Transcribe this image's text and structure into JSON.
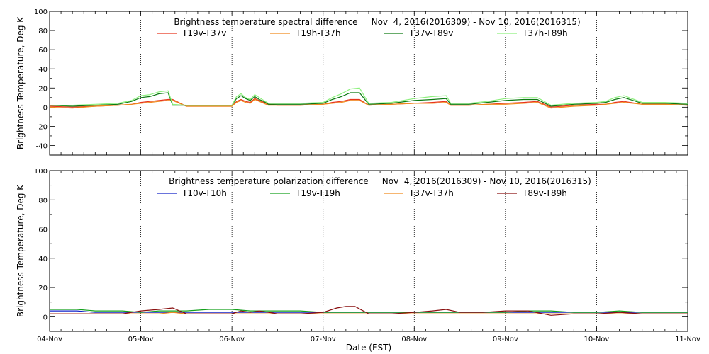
{
  "chart_data": [
    {
      "type": "line",
      "title": "Brightness temperature spectral difference     Nov  4, 2016(2016309) - Nov 10, 2016(2016315)",
      "ylabel": "Brightness Temperature, Deg K",
      "xlabel": "",
      "ylim": [
        -50,
        100
      ],
      "yticks": [
        "-40",
        "-20",
        "0",
        "20",
        "40",
        "60",
        "80",
        "100"
      ],
      "xlim": [
        0,
        7
      ],
      "grid": "vertical dotted lines at day boundaries",
      "legend": "top, single row",
      "series": [
        {
          "name": "T19v-T37v",
          "color": "#e8351c",
          "x": [
            0,
            0.25,
            0.5,
            0.75,
            0.9,
            1.0,
            1.1,
            1.2,
            1.3,
            1.35,
            1.5,
            1.75,
            2.0,
            2.05,
            2.1,
            2.15,
            2.2,
            2.25,
            2.3,
            2.35,
            2.4,
            2.5,
            2.75,
            3.0,
            3.1,
            3.2,
            3.3,
            3.4,
            3.5,
            3.75,
            4.0,
            4.2,
            4.35,
            4.4,
            4.6,
            4.8,
            5.0,
            5.2,
            5.35,
            5.5,
            5.75,
            6.0,
            6.1,
            6.2,
            6.3,
            6.5,
            6.75,
            7.0
          ],
          "y": [
            1,
            0,
            1,
            2,
            3,
            5,
            6,
            7,
            8,
            8,
            1,
            1,
            1,
            6,
            8,
            6,
            5,
            9,
            7,
            5,
            3,
            2,
            2,
            3,
            5,
            6,
            8,
            8,
            2,
            3,
            4,
            5,
            6,
            2,
            2,
            3,
            4,
            5,
            6,
            0,
            2,
            3,
            3,
            5,
            6,
            3,
            3,
            2
          ]
        },
        {
          "name": "T19h-T37h",
          "color": "#f08a1c",
          "x": [
            0,
            0.25,
            0.5,
            0.75,
            0.9,
            1.0,
            1.1,
            1.2,
            1.3,
            1.35,
            1.5,
            1.75,
            2.0,
            2.05,
            2.1,
            2.15,
            2.2,
            2.25,
            2.3,
            2.35,
            2.4,
            2.5,
            2.75,
            3.0,
            3.1,
            3.2,
            3.3,
            3.4,
            3.5,
            3.75,
            4.0,
            4.2,
            4.35,
            4.4,
            4.6,
            4.8,
            5.0,
            5.2,
            5.35,
            5.5,
            5.75,
            6.0,
            6.1,
            6.2,
            6.3,
            6.5,
            6.75,
            7.0
          ],
          "y": [
            0,
            -1,
            1,
            2,
            3,
            4,
            5,
            6,
            7,
            7,
            1,
            1,
            1,
            5,
            7,
            5,
            4,
            8,
            6,
            4,
            2,
            2,
            2,
            3,
            4,
            5,
            7,
            7,
            2,
            3,
            4,
            4,
            5,
            2,
            2,
            3,
            3,
            4,
            5,
            -1,
            1,
            2,
            3,
            4,
            5,
            3,
            3,
            2
          ]
        },
        {
          "name": "T37v-T89v",
          "color": "#0c7a12",
          "x": [
            0,
            0.25,
            0.5,
            0.75,
            0.9,
            1.0,
            1.1,
            1.2,
            1.3,
            1.35,
            1.5,
            1.75,
            2.0,
            2.05,
            2.1,
            2.15,
            2.2,
            2.25,
            2.3,
            2.35,
            2.4,
            2.5,
            2.75,
            3.0,
            3.1,
            3.2,
            3.3,
            3.4,
            3.5,
            3.75,
            4.0,
            4.2,
            4.35,
            4.4,
            4.6,
            4.8,
            5.0,
            5.2,
            5.35,
            5.5,
            5.75,
            6.0,
            6.1,
            6.2,
            6.3,
            6.5,
            6.75,
            7.0
          ],
          "y": [
            2,
            1,
            2,
            3,
            6,
            10,
            11,
            14,
            15,
            2,
            2,
            2,
            2,
            9,
            12,
            9,
            7,
            11,
            8,
            6,
            3,
            3,
            3,
            4,
            8,
            11,
            15,
            15,
            3,
            4,
            7,
            8,
            9,
            3,
            3,
            5,
            7,
            8,
            8,
            1,
            3,
            4,
            5,
            8,
            10,
            4,
            4,
            3
          ]
        },
        {
          "name": "T37h-T89h",
          "color": "#8ef07e",
          "x": [
            0,
            0.25,
            0.5,
            0.75,
            0.9,
            1.0,
            1.1,
            1.2,
            1.3,
            1.35,
            1.5,
            1.75,
            2.0,
            2.05,
            2.1,
            2.15,
            2.2,
            2.25,
            2.3,
            2.35,
            2.4,
            2.5,
            2.75,
            3.0,
            3.1,
            3.2,
            3.3,
            3.4,
            3.5,
            3.75,
            4.0,
            4.2,
            4.35,
            4.4,
            4.6,
            4.8,
            5.0,
            5.2,
            5.35,
            5.5,
            5.75,
            6.0,
            6.1,
            6.2,
            6.3,
            6.5,
            6.75,
            7.0
          ],
          "y": [
            2,
            2,
            3,
            4,
            7,
            12,
            13,
            16,
            17,
            3,
            2,
            2,
            2,
            11,
            14,
            10,
            8,
            13,
            10,
            7,
            4,
            4,
            4,
            5,
            10,
            14,
            19,
            20,
            4,
            5,
            9,
            11,
            12,
            4,
            4,
            6,
            9,
            10,
            10,
            2,
            4,
            5,
            6,
            10,
            12,
            5,
            5,
            4
          ]
        }
      ]
    },
    {
      "type": "line",
      "title": "Brightness temperature polarization difference     Nov  4, 2016(2016309) - Nov 10, 2016(2016315)",
      "ylabel": "Brightness Temperature, Deg K",
      "xlabel": "Date (EST)",
      "ylim": [
        -10,
        100
      ],
      "yticks": [
        "0",
        "20",
        "40",
        "60",
        "80",
        "100"
      ],
      "xlim": [
        0,
        7
      ],
      "xticks": [
        "04-Nov",
        "05-Nov",
        "06-Nov",
        "07-Nov",
        "08-Nov",
        "09-Nov",
        "10-Nov",
        "11-Nov"
      ],
      "grid": "vertical dotted lines at day boundaries",
      "legend": "top, single row",
      "series": [
        {
          "name": "T10v-T10h",
          "color": "#1020c8",
          "x": [
            0,
            0.3,
            0.5,
            0.8,
            1.0,
            1.2,
            1.35,
            1.5,
            1.75,
            2.0,
            2.2,
            2.5,
            2.75,
            3.0,
            3.25,
            3.5,
            3.75,
            4.0,
            4.25,
            4.5,
            4.75,
            5.0,
            5.25,
            5.5,
            5.75,
            6.0,
            6.25,
            6.5,
            6.75,
            7.0
          ],
          "y": [
            4,
            4,
            3,
            3,
            3,
            3,
            3,
            3,
            3,
            3,
            3,
            3,
            3,
            3,
            3,
            3,
            3,
            3,
            3,
            3,
            3,
            3,
            3,
            3,
            3,
            3,
            3,
            3,
            3,
            3
          ]
        },
        {
          "name": "T19v-T19h",
          "color": "#14a01c",
          "x": [
            0,
            0.3,
            0.5,
            0.8,
            1.0,
            1.2,
            1.35,
            1.5,
            1.75,
            2.0,
            2.2,
            2.5,
            2.75,
            3.0,
            3.25,
            3.5,
            3.75,
            4.0,
            4.25,
            4.5,
            4.75,
            5.0,
            5.25,
            5.5,
            5.75,
            6.0,
            6.25,
            6.5,
            6.75,
            7.0
          ],
          "y": [
            5,
            5,
            4,
            4,
            3,
            4,
            4,
            4,
            5,
            5,
            4,
            4,
            4,
            3,
            3,
            3,
            3,
            3,
            3,
            3,
            3,
            3,
            4,
            4,
            3,
            3,
            4,
            3,
            3,
            3
          ]
        },
        {
          "name": "T37v-T37h",
          "color": "#f08a1c",
          "x": [
            0,
            0.3,
            0.5,
            0.8,
            1.0,
            1.2,
            1.35,
            1.5,
            1.75,
            2.0,
            2.2,
            2.5,
            2.75,
            3.0,
            3.25,
            3.5,
            3.75,
            4.0,
            4.25,
            4.5,
            4.75,
            5.0,
            5.25,
            5.5,
            5.75,
            6.0,
            6.25,
            6.5,
            6.75,
            7.0
          ],
          "y": [
            2,
            2,
            2,
            2,
            2,
            2,
            3,
            2,
            2,
            2,
            2,
            2,
            2,
            2,
            2,
            2,
            2,
            2,
            2,
            2,
            2,
            2,
            2,
            2,
            2,
            2,
            2,
            2,
            2,
            2
          ]
        },
        {
          "name": "T89v-T89h",
          "color": "#8a1010",
          "x": [
            0,
            0.3,
            0.5,
            0.8,
            1.0,
            1.2,
            1.35,
            1.5,
            1.75,
            2.0,
            2.1,
            2.2,
            2.3,
            2.5,
            2.75,
            3.0,
            3.15,
            3.25,
            3.35,
            3.5,
            3.75,
            4.0,
            4.2,
            4.35,
            4.5,
            4.75,
            5.0,
            5.25,
            5.5,
            5.75,
            6.0,
            6.25,
            6.5,
            6.75,
            7.0
          ],
          "y": [
            2,
            2,
            2,
            2,
            4,
            5,
            6,
            2,
            2,
            2,
            4,
            3,
            4,
            2,
            2,
            3,
            6,
            7,
            7,
            2,
            2,
            3,
            4,
            5,
            3,
            3,
            4,
            4,
            1,
            2,
            2,
            3,
            2,
            2,
            2
          ]
        }
      ]
    }
  ]
}
